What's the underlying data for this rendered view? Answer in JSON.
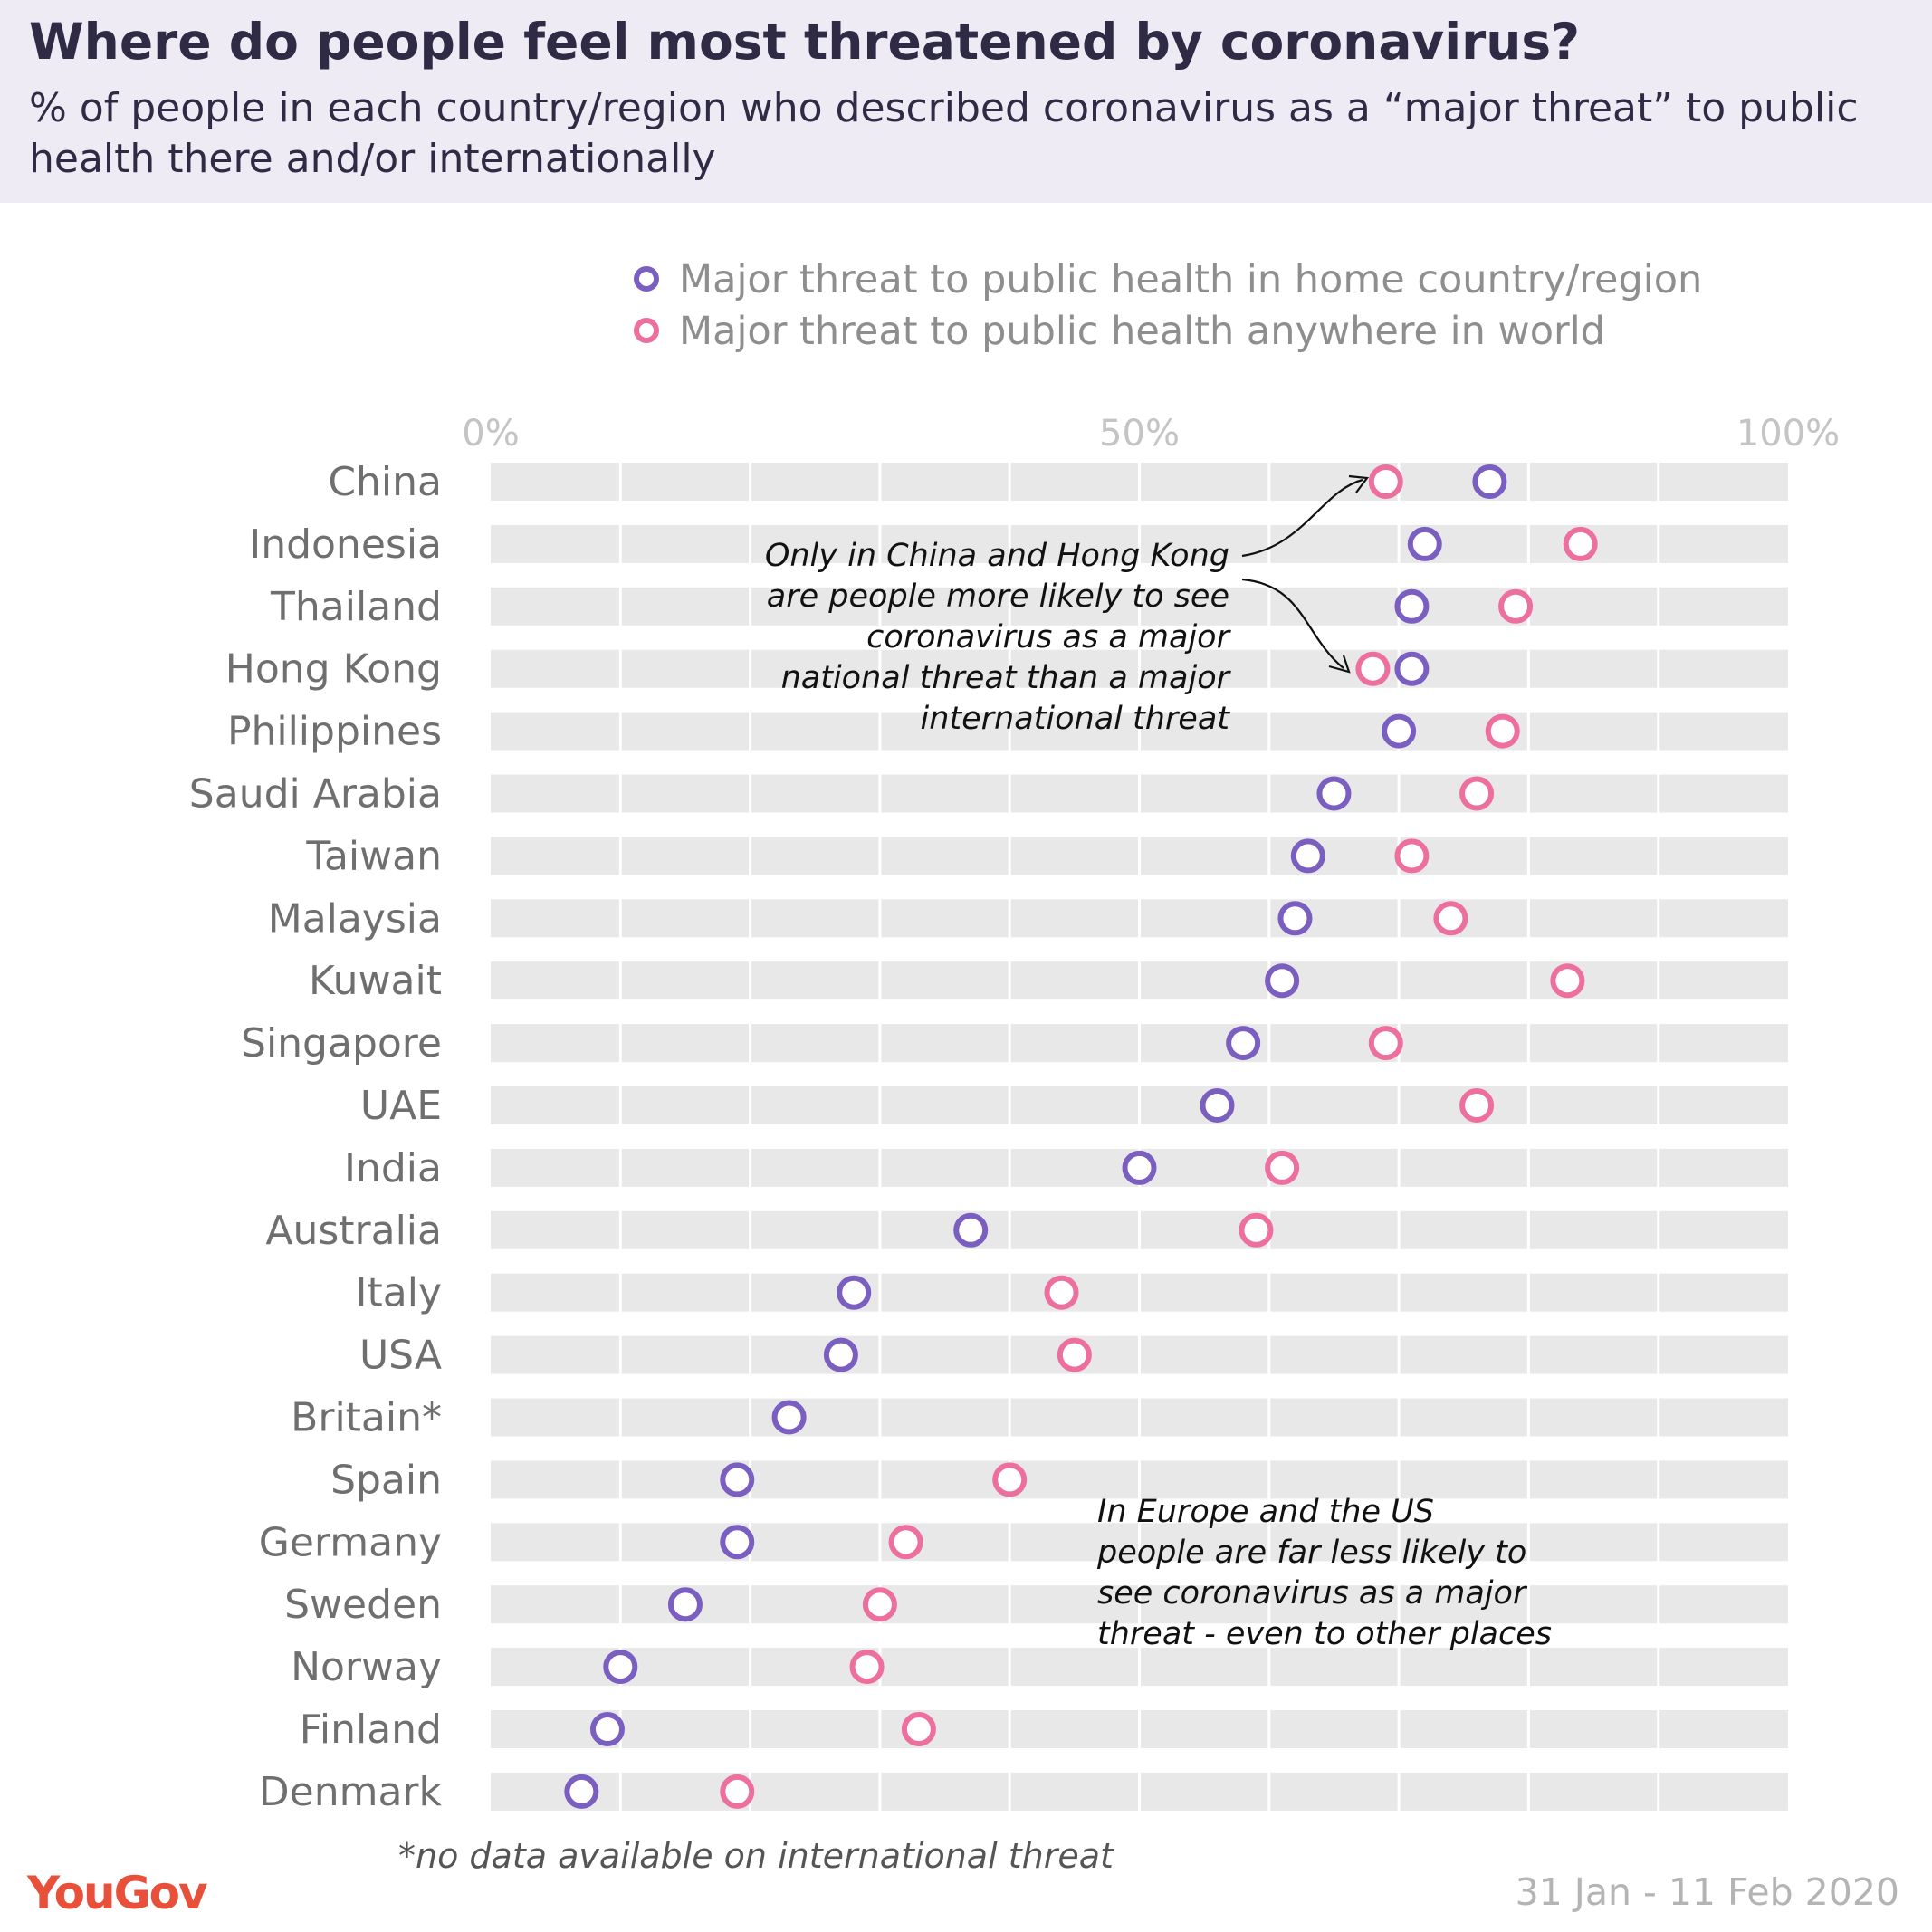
{
  "title": "Where do people feel most threatened by coronavirus?",
  "subtitle": "% of people in each country/region who described coronavirus as a “major threat” to public health there and/or internationally",
  "legend": [
    {
      "label": "Major threat to public health in home country/region",
      "color": "#7a5fc0"
    },
    {
      "label": "Major threat to public health anywhere in world",
      "color": "#ec6f9d"
    }
  ],
  "notes": {
    "china_hk": [
      "Only in China and Hong Kong",
      "are people more likely to see",
      "coronavirus as a major",
      "national threat than a major",
      "international threat"
    ],
    "europe_us": [
      "In Europe and the US",
      "people are far less likely to",
      "see coronavirus as a major",
      "threat - even to other places"
    ]
  },
  "footnote": "*no data available on international threat",
  "source_logo": "YouGov",
  "date_range": "31 Jan - 11 Feb 2020",
  "chart_data": {
    "type": "dot",
    "xlim": [
      0,
      100
    ],
    "x_ticks": [
      {
        "value": 0,
        "label": "0%"
      },
      {
        "value": 50,
        "label": "50%"
      },
      {
        "value": 100,
        "label": "100%"
      }
    ],
    "categories": [
      "China",
      "Indonesia",
      "Thailand",
      "Hong Kong",
      "Philippines",
      "Saudi Arabia",
      "Taiwan",
      "Malaysia",
      "Kuwait",
      "Singapore",
      "UAE",
      "India",
      "Australia",
      "Italy",
      "USA",
      "Britain*",
      "Spain",
      "Germany",
      "Sweden",
      "Norway",
      "Finland",
      "Denmark"
    ],
    "series": [
      {
        "name": "Major threat to public health in home country/region",
        "color": "#7a5fc0",
        "values": [
          77,
          72,
          71,
          71,
          70,
          65,
          63,
          62,
          61,
          58,
          56,
          50,
          37,
          28,
          27,
          23,
          19,
          19,
          15,
          10,
          9,
          7
        ]
      },
      {
        "name": "Major threat to public health anywhere in world",
        "color": "#ec6f9d",
        "values": [
          69,
          84,
          79,
          68,
          78,
          76,
          71,
          74,
          83,
          69,
          76,
          61,
          59,
          44,
          45,
          null,
          40,
          32,
          30,
          29,
          33,
          19
        ]
      }
    ]
  }
}
